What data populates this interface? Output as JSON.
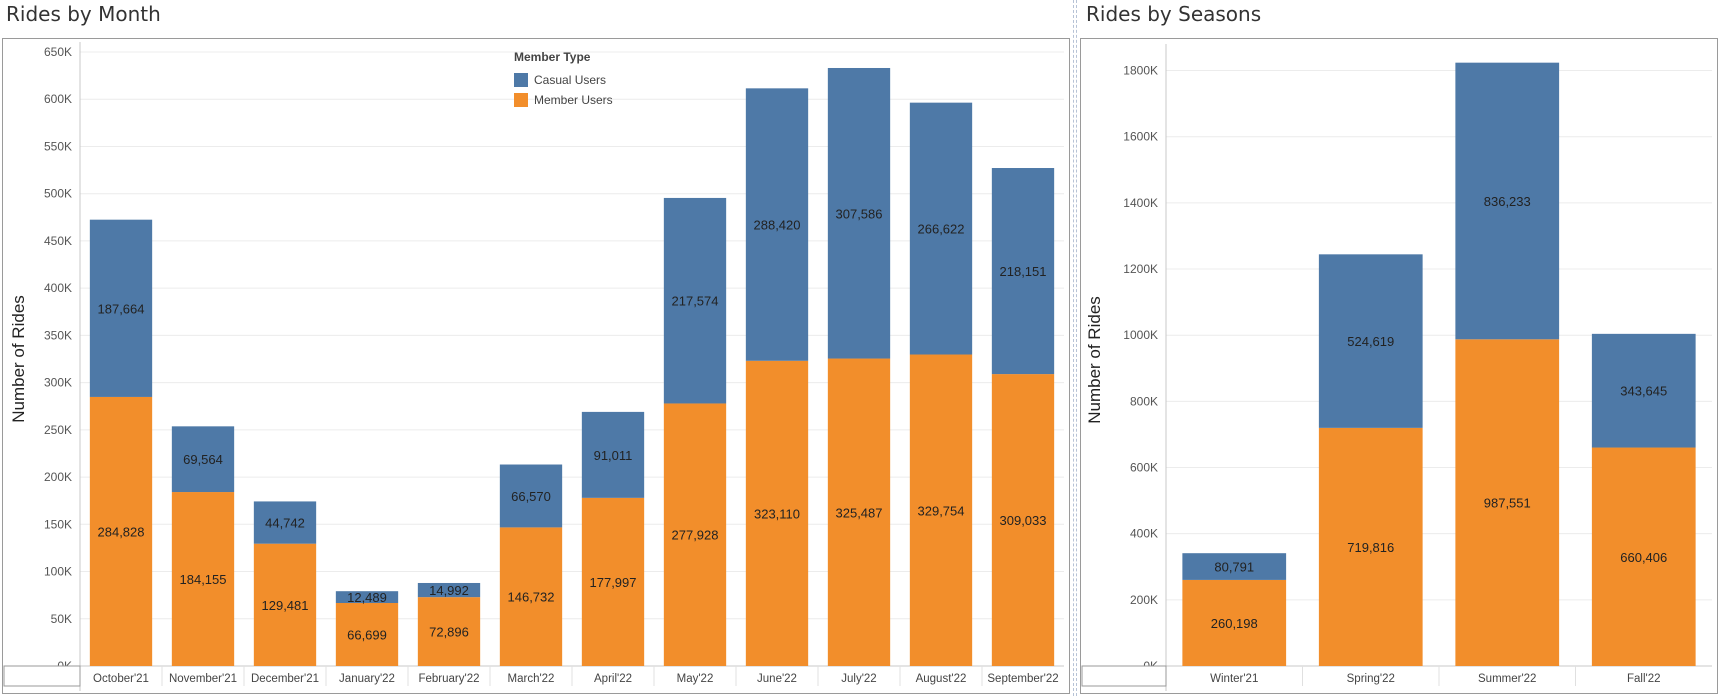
{
  "colors": {
    "casual": "#4e79a7",
    "member": "#f28e2b"
  },
  "legend": {
    "title": "Member Type",
    "items": [
      {
        "label": "Casual Users",
        "color": "#4e79a7"
      },
      {
        "label": "Member Users",
        "color": "#f28e2b"
      }
    ]
  },
  "chart_data": [
    {
      "type": "bar",
      "stacked": true,
      "title": "Rides by Month",
      "ylabel": "Number of Rides",
      "xlabel": "",
      "ylim": [
        0,
        650000
      ],
      "yticks": [
        0,
        50000,
        100000,
        150000,
        200000,
        250000,
        300000,
        350000,
        400000,
        450000,
        500000,
        550000,
        600000,
        650000
      ],
      "ytick_labels": [
        "0K",
        "50K",
        "100K",
        "150K",
        "200K",
        "250K",
        "300K",
        "350K",
        "400K",
        "450K",
        "500K",
        "550K",
        "600K",
        "650K"
      ],
      "categories": [
        "October'21",
        "November'21",
        "December'21",
        "January'22",
        "February'22",
        "March'22",
        "April'22",
        "May'22",
        "June'22",
        "July'22",
        "August'22",
        "September'22"
      ],
      "series": [
        {
          "name": "Member Users",
          "values": [
            284828,
            184155,
            129481,
            66699,
            72896,
            146732,
            177997,
            277928,
            323110,
            325487,
            329754,
            309033
          ],
          "labels": [
            "284,828",
            "184,155",
            "129,481",
            "66,699",
            "72,896",
            "146,732",
            "177,997",
            "277,928",
            "323,110",
            "325,487",
            "329,754",
            "309,033"
          ]
        },
        {
          "name": "Casual Users",
          "values": [
            187664,
            69564,
            44742,
            12489,
            14992,
            66570,
            91011,
            217574,
            288420,
            307586,
            266622,
            218151
          ],
          "labels": [
            "187,664",
            "69,564",
            "44,742",
            "12,489",
            "14,992",
            "66,570",
            "91,011",
            "217,574",
            "288,420",
            "307,586",
            "266,622",
            "218,151"
          ]
        }
      ],
      "legend_position": "top-center",
      "grid": true
    },
    {
      "type": "bar",
      "stacked": true,
      "title": "Rides by Seasons",
      "ylabel": "Number of Rides",
      "xlabel": "",
      "ylim": [
        0,
        1850000
      ],
      "yticks": [
        0,
        200000,
        400000,
        600000,
        800000,
        1000000,
        1200000,
        1400000,
        1600000,
        1800000
      ],
      "ytick_labels": [
        "0K",
        "200K",
        "400K",
        "600K",
        "800K",
        "1000K",
        "1200K",
        "1400K",
        "1600K",
        "1800K"
      ],
      "categories": [
        "Winter'21",
        "Spring'22",
        "Summer'22",
        "Fall'22"
      ],
      "series": [
        {
          "name": "Member Users",
          "values": [
            260198,
            719816,
            987551,
            660406
          ],
          "labels": [
            "260,198",
            "719,816",
            "987,551",
            "660,406"
          ]
        },
        {
          "name": "Casual Users",
          "values": [
            80791,
            524619,
            836233,
            343645
          ],
          "labels": [
            "80,791",
            "524,619",
            "836,233",
            "343,645"
          ]
        }
      ],
      "grid": true
    }
  ]
}
